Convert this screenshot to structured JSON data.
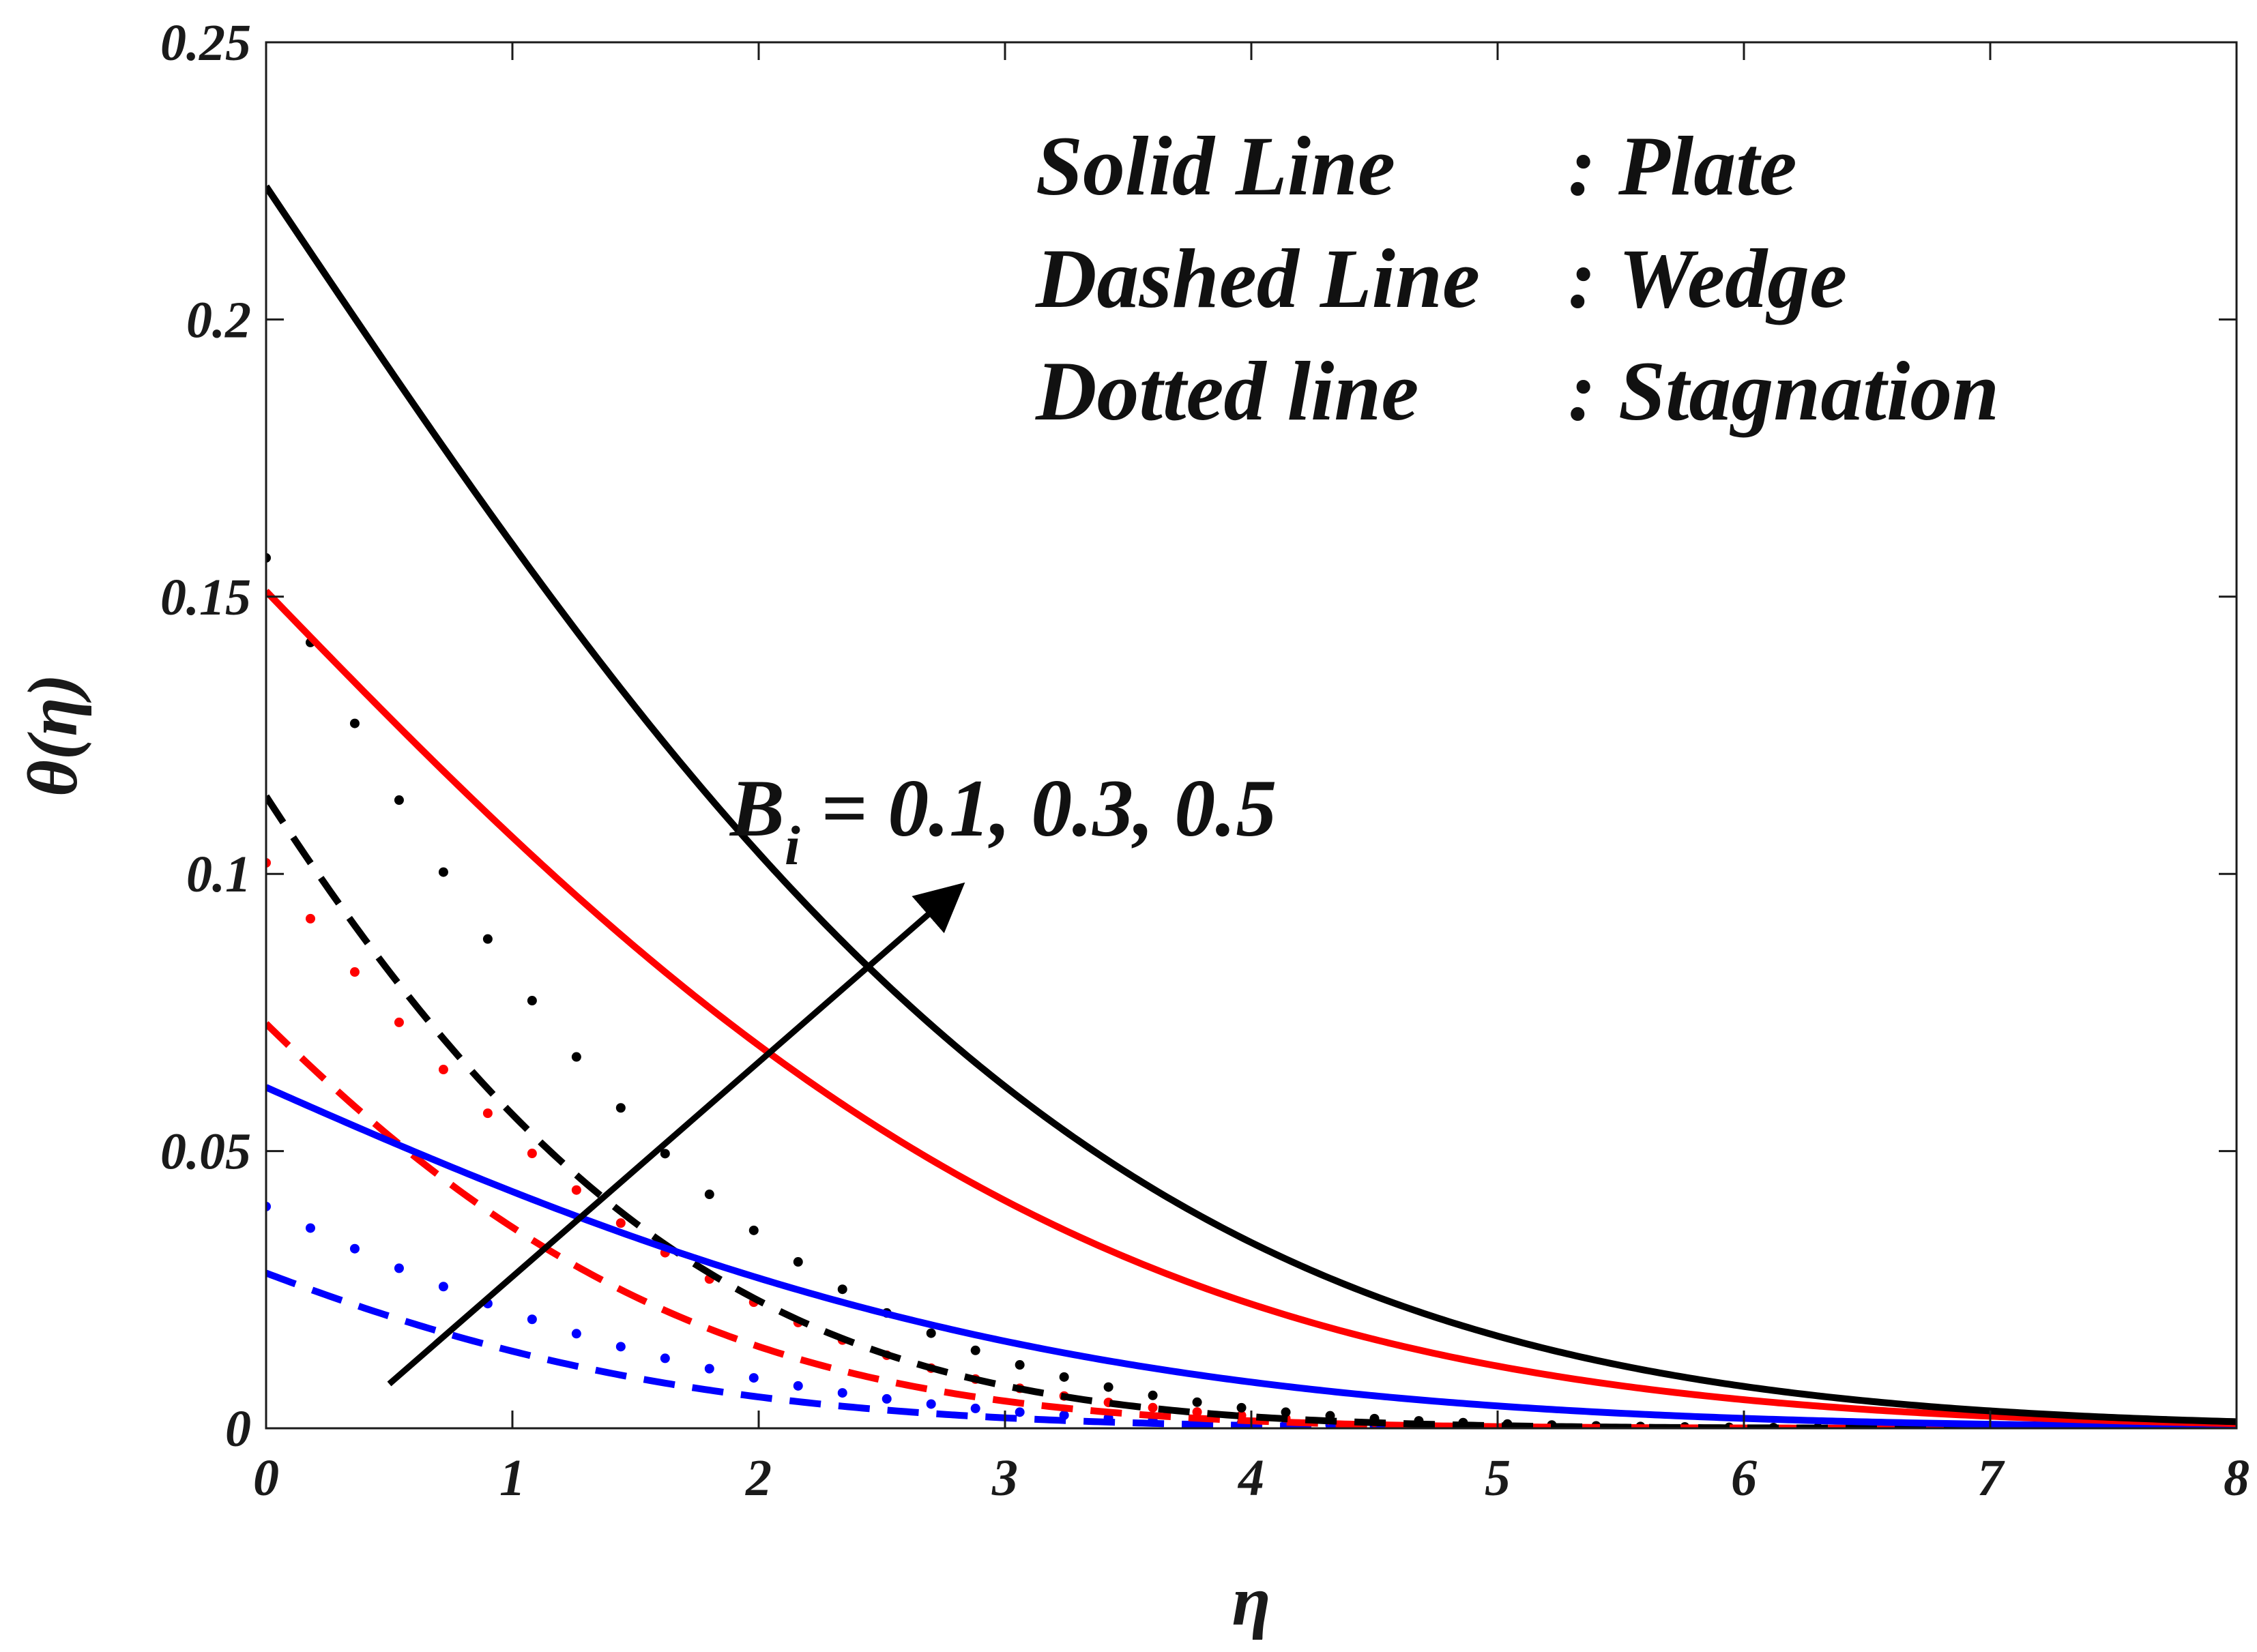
{
  "chart_data": {
    "type": "line",
    "title": "",
    "xlabel": "η",
    "ylabel": "θ(η)",
    "xlim": [
      0,
      8
    ],
    "ylim": [
      0,
      0.25
    ],
    "xticks": [
      0,
      1,
      2,
      3,
      4,
      5,
      6,
      7,
      8
    ],
    "xtick_labels": [
      "0",
      "1",
      "2",
      "3",
      "4",
      "5",
      "6",
      "7",
      "8"
    ],
    "yticks": [
      0,
      0.05,
      0.1,
      0.15,
      0.2,
      0.25
    ],
    "ytick_labels": [
      "0",
      "0.05",
      "0.1",
      "0.15",
      "0.2",
      "0.25"
    ],
    "grid": false,
    "legend_notes": [
      {
        "style": "Solid Line",
        "sep": ":",
        "geometry": "Plate"
      },
      {
        "style": "Dashed Line",
        "sep": ":",
        "geometry": "Wedge"
      },
      {
        "style": "Dotted line",
        "sep": ":",
        "geometry": "Stagnation"
      }
    ],
    "annotation": {
      "symbol": "B",
      "subscript": "i",
      "text": " = 0.1, 0.3, 0.5",
      "arrow": "increasing Bi"
    },
    "colors": {
      "Bi=0.1": "#0000ff",
      "Bi=0.3": "#ff0000",
      "Bi=0.5": "#000000"
    },
    "series": [
      {
        "name": "Plate, Bi = 0.1",
        "style": "solid",
        "color": "#0000ff",
        "theta0": 0.0615,
        "decay": [
          0.32,
          0.045
        ]
      },
      {
        "name": "Plate, Bi = 0.3",
        "style": "solid",
        "color": "#ff0000",
        "theta0": 0.151,
        "decay": [
          0.305,
          0.043
        ]
      },
      {
        "name": "Plate, Bi = 0.5",
        "style": "solid",
        "color": "#000000",
        "theta0": 0.224,
        "decay": [
          0.295,
          0.045
        ]
      },
      {
        "name": "Wedge, Bi = 0.1",
        "style": "dashed",
        "color": "#0000ff",
        "theta0": 0.028,
        "decay": [
          0.6,
          0.1
        ]
      },
      {
        "name": "Wedge, Bi = 0.3",
        "style": "dashed",
        "color": "#ff0000",
        "theta0": 0.073,
        "decay": [
          0.6,
          0.1
        ]
      },
      {
        "name": "Wedge, Bi = 0.5",
        "style": "dashed",
        "color": "#000000",
        "theta0": 0.114,
        "decay": [
          0.6,
          0.1
        ]
      },
      {
        "name": "Stagnation, Bi = 0.1",
        "style": "dotted",
        "color": "#0000ff",
        "theta0": 0.04,
        "decay": [
          0.55,
          0.1
        ]
      },
      {
        "name": "Stagnation, Bi = 0.3",
        "style": "dotted",
        "color": "#ff0000",
        "theta0": 0.102,
        "decay": [
          0.56,
          0.1
        ]
      },
      {
        "name": "Stagnation, Bi = 0.5",
        "style": "dotted",
        "color": "#000000",
        "theta0": 0.157,
        "decay": [
          0.55,
          0.1
        ]
      }
    ],
    "arrow_data": {
      "from": [
        0.5,
        0.008
      ],
      "to": [
        2.8,
        0.097
      ]
    }
  }
}
